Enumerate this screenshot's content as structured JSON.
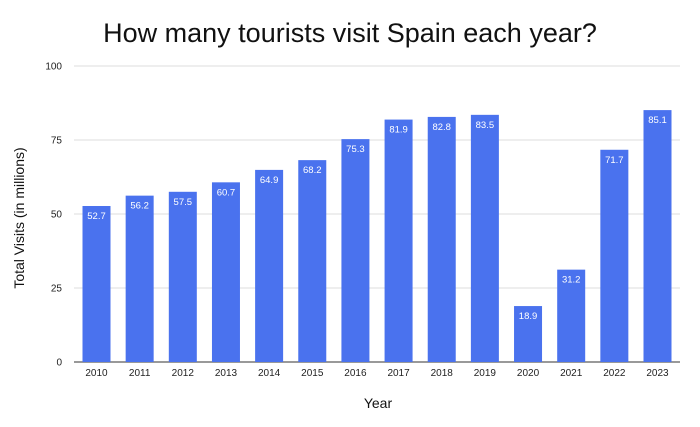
{
  "chart_data": {
    "type": "bar",
    "title": "How many tourists visit Spain each year?",
    "xlabel": "Year",
    "ylabel": "Total Visits (in millions)",
    "categories": [
      "2010",
      "2011",
      "2012",
      "2013",
      "2014",
      "2015",
      "2016",
      "2017",
      "2018",
      "2019",
      "2020",
      "2021",
      "2022",
      "2023"
    ],
    "values": [
      52.7,
      56.2,
      57.5,
      60.7,
      64.9,
      68.2,
      75.3,
      81.9,
      82.8,
      83.5,
      18.9,
      31.2,
      71.7,
      85.1
    ],
    "data_labels": [
      "52.7",
      "56.2",
      "57.5",
      "60.7",
      "64.9",
      "68.2",
      "75.3",
      "81.9",
      "82.8",
      "83.5",
      "18.9",
      "31.2",
      "71.7",
      "85.1"
    ],
    "ylim": [
      0,
      100
    ],
    "yticks": [
      0,
      25,
      50,
      75,
      100
    ],
    "ytick_labels": [
      "0",
      "25",
      "50",
      "75",
      "100"
    ],
    "grid": true,
    "bar_color": "#4a72ee",
    "label_color": "#ffffff"
  }
}
